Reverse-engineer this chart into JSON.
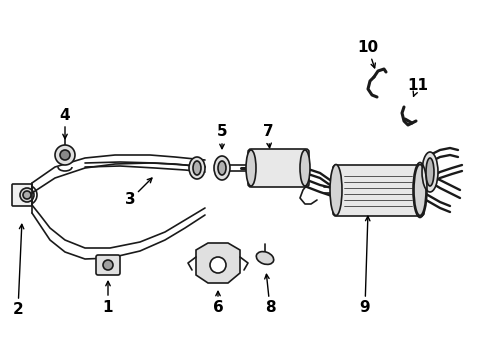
{
  "bg_color": "#ffffff",
  "lc": "#1a1a1a",
  "fig_width": 4.9,
  "fig_height": 3.6,
  "dpi": 100
}
